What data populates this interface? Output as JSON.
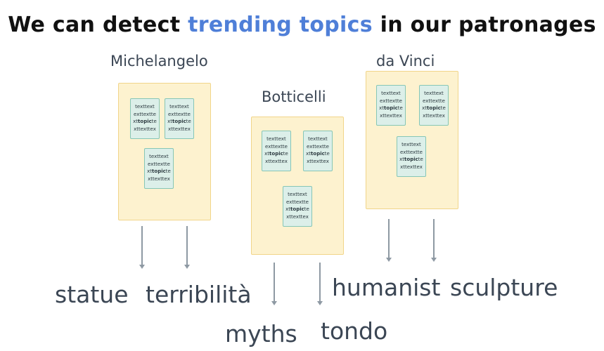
{
  "title": {
    "prefix": "We can detect ",
    "highlight": "trending topics",
    "suffix": " in our patronages",
    "highlight_color": "#4f7fd8"
  },
  "doc_text": {
    "line1": "texttext",
    "line2": "exttextte",
    "line3_pre": "xt",
    "line3_bold": "topic",
    "line3_post": "te",
    "line4": "xttexttex"
  },
  "groups": [
    {
      "label": "Michelangelo",
      "topics": [
        "statue",
        "terribilità"
      ]
    },
    {
      "label": "Botticelli",
      "topics": [
        "myths",
        "tondo"
      ]
    },
    {
      "label": "da Vinci",
      "topics": [
        "humanist",
        "sculpture"
      ]
    }
  ],
  "colors": {
    "box_fill": "#fdf2cf",
    "box_border": "#f1d58a",
    "doc_fill": "#dcefe9",
    "doc_border": "#86c6b6",
    "arrow": "#8e99a3",
    "text": "#3b4654"
  }
}
